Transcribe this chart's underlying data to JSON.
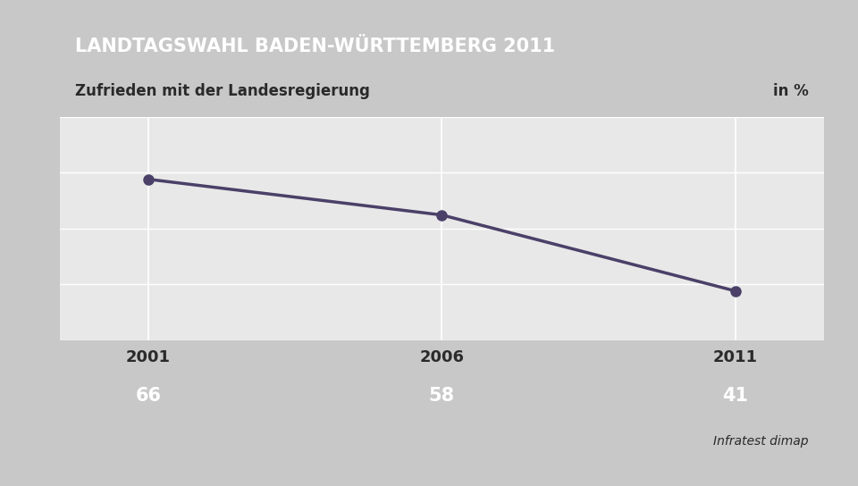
{
  "title": "LANDTAGSWAHL BADEN-WÜRTTEMBERG 2011",
  "subtitle": "Zufrieden mit der Landesregierung",
  "unit_label": "in %",
  "source": "Infratest dimap",
  "years": [
    2001,
    2006,
    2011
  ],
  "values": [
    66,
    58,
    41
  ],
  "line_color": "#4a4068",
  "marker_color": "#4a4068",
  "title_bg_color": "#1a3a6b",
  "title_text_color": "#ffffff",
  "subtitle_bg_color": "#ffffff",
  "subtitle_text_color": "#2a2a2a",
  "table_bg_color": "#5b8db8",
  "table_text_color": "#ffffff",
  "plot_bg_color": "#e8e8e8",
  "outer_bg_color": "#c8c8c8",
  "grid_color": "#ffffff",
  "year_label_color": "#2a2a2a",
  "ylim": [
    30,
    80
  ],
  "figsize": [
    9.6,
    5.44
  ],
  "dpi": 100
}
